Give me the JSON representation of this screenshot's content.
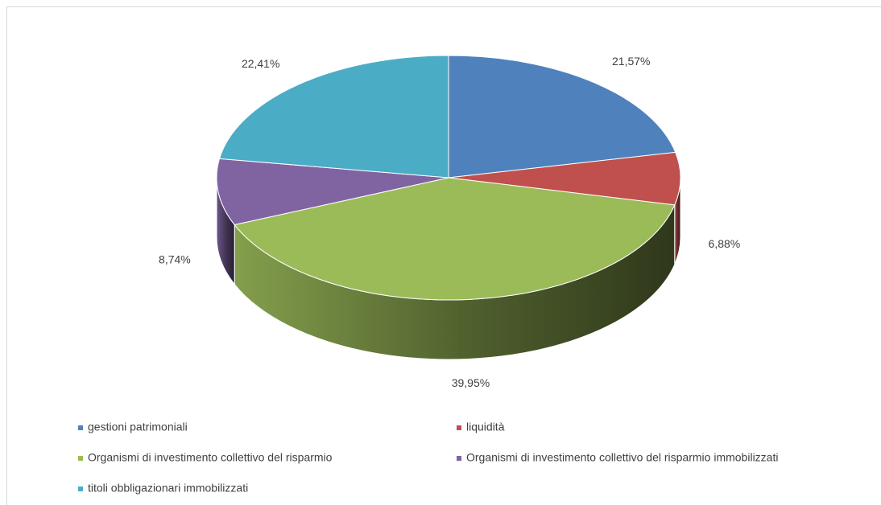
{
  "chart_data": {
    "type": "pie",
    "categories": [
      "gestioni patrimoniali",
      "liquidità",
      "Organismi di investimento collettivo del risparmio",
      "Organismi di investimento collettivo del risparmio immobilizzati",
      "titoli obbligazionari immobilizzati"
    ],
    "values": [
      21.57,
      6.88,
      39.95,
      8.74,
      22.41
    ],
    "value_labels": [
      "21,57%",
      "6,88%",
      "39,95%",
      "8,74%",
      "22,41%"
    ],
    "colors": [
      "#4f81bd",
      "#c0504d",
      "#9bbb59",
      "#8064a2",
      "#4bacc6"
    ],
    "legend": "bottom"
  }
}
